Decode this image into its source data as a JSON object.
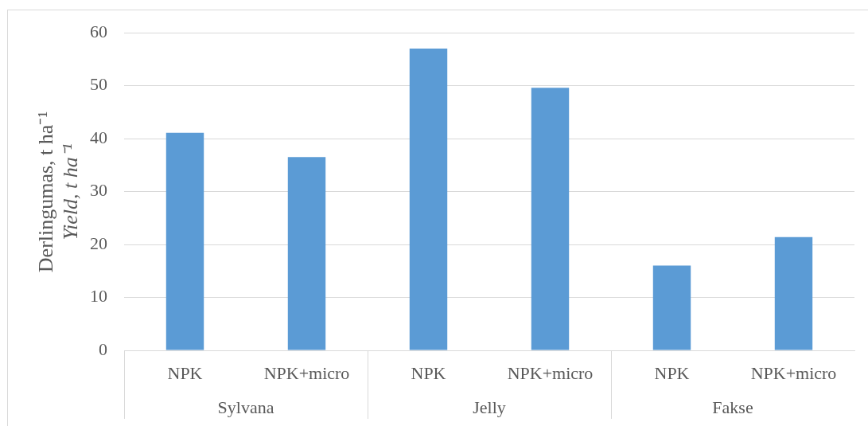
{
  "chart_data": {
    "type": "bar",
    "ylabel": "Derlingumas, t ha⁻¹\nYield, t ha⁻¹",
    "categories": [
      "NPK",
      "NPK+micro",
      "NPK",
      "NPK+micro",
      "NPK",
      "NPK+micro"
    ],
    "values": [
      41.1,
      36.5,
      57.0,
      49.6,
      16.0,
      21.4
    ],
    "color": "#5b9bd5",
    "ylim": [
      0,
      60
    ],
    "yticks": [
      0,
      10,
      20,
      30,
      40,
      50,
      60
    ],
    "grid": "y",
    "annotations": [
      "Sylvana",
      "Jelly",
      "Fakse"
    ]
  }
}
